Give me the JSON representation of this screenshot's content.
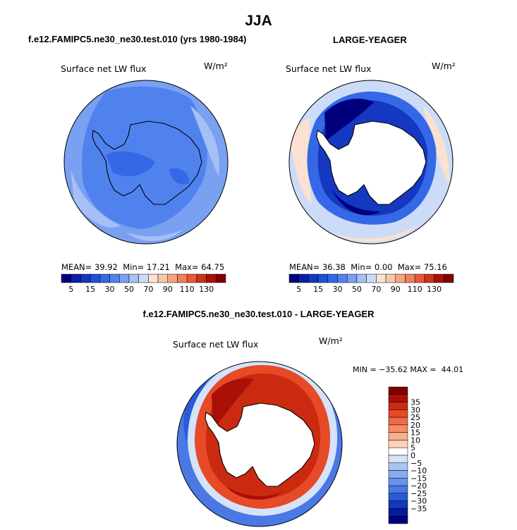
{
  "chart_data": {
    "title": "JJA",
    "panels": [
      {
        "type": "heatmap",
        "projection": "south-polar-stereographic",
        "title": "f.e12.FAMIPC5.ne30_ne30.test.010 (yrs 1980-1984)",
        "variable": "Surface net LW flux",
        "units": "W/m²",
        "stats": {
          "mean_label": "MEAN=",
          "mean": "39.92",
          "min_label": "Min=",
          "min": "17.21",
          "max_label": "Max=",
          "max": "64.75"
        },
        "colorbar_ticks": [
          "5",
          "15",
          "30",
          "50",
          "70",
          "90",
          "110",
          "130"
        ]
      },
      {
        "type": "heatmap",
        "projection": "south-polar-stereographic",
        "title": "LARGE-YEAGER",
        "variable": "Surface net LW flux",
        "units": "W/m²",
        "stats": {
          "mean_label": "MEAN=",
          "mean": "36.38",
          "min_label": "Min=",
          "min": "0.00",
          "max_label": "Max=",
          "max": "75.16"
        },
        "colorbar_ticks": [
          "5",
          "15",
          "30",
          "50",
          "70",
          "90",
          "110",
          "130"
        ]
      },
      {
        "type": "heatmap",
        "projection": "south-polar-stereographic",
        "title": "f.e12.FAMIPC5.ne30_ne30.test.010 - LARGE-YEAGER",
        "variable": "Surface net LW flux",
        "units": "W/m²",
        "range_text": "MIN = −35.62 MAX =  44.01",
        "colorbar_ticks": [
          "35",
          "30",
          "25",
          "20",
          "15",
          "10",
          "5",
          "0",
          "−5",
          "−10",
          "−15",
          "−20",
          "−25",
          "−30",
          "−35"
        ]
      }
    ],
    "colorbar_abs_colors": [
      "#00007f",
      "#0a1fa8",
      "#1438c0",
      "#1e50d8",
      "#3468e6",
      "#5082ee",
      "#7aa0f2",
      "#a6c0f6",
      "#ccdcf8",
      "#fbe1d2",
      "#f8c6aa",
      "#f5a482",
      "#f0805c",
      "#e65a38",
      "#cc3418",
      "#a81008",
      "#800000"
    ],
    "colorbar_diff_colors": [
      "#800000",
      "#a81008",
      "#cc2a10",
      "#e64a26",
      "#f06a44",
      "#f58c66",
      "#f8ae8c",
      "#fbd2b8",
      "#ffffff",
      "#d4e2fa",
      "#a8c4f4",
      "#86acf0",
      "#6a92ec",
      "#4a78e4",
      "#2a5ad8",
      "#1438c0",
      "#001e9a",
      "#00007f"
    ],
    "colors": {
      "land_white": "#ffffff",
      "coast": "#000000"
    }
  }
}
